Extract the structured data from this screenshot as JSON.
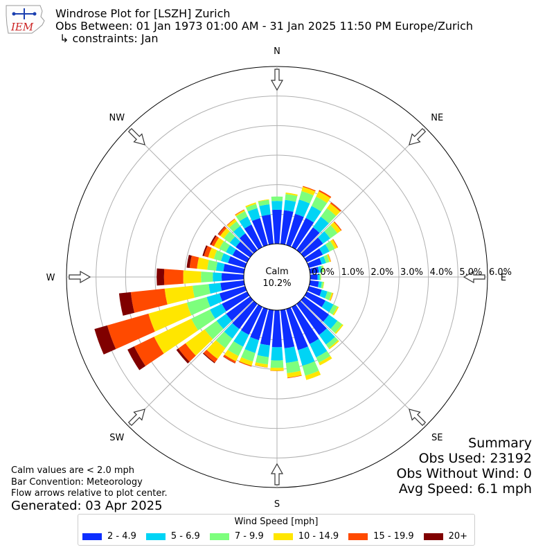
{
  "header": {
    "logo_text": "IEM",
    "title": "Windrose Plot for [LSZH] Zurich",
    "subtitle": "Obs Between: 01 Jan 1973 01:00 AM - 31 Jan 2025 11:50 PM Europe/Zurich",
    "constraints": "↳ constraints: Jan"
  },
  "notes": {
    "calm_def": "Calm values are < 2.0 mph",
    "convention": "Bar Convention: Meteorology",
    "flow": "Flow arrows relative to plot center.",
    "generated": "Generated: 03 Apr 2025"
  },
  "summary": {
    "title": "Summary",
    "obs_used": "Obs Used: 23192",
    "obs_without_wind": "Obs Without Wind: 0",
    "avg_speed": "Avg Speed: 6.1 mph"
  },
  "chart_data": {
    "type": "windrose",
    "calm_label": "Calm",
    "calm_value": "10.2%",
    "directions": [
      "N",
      "NE",
      "E",
      "SE",
      "S",
      "SW",
      "W",
      "NW"
    ],
    "radial_labels": [
      "0.0%",
      "1.0%",
      "2.0%",
      "3.0%",
      "4.0%",
      "5.0%",
      "6.0%"
    ],
    "radial_max": 6.0,
    "sector_degrees": [
      0,
      10,
      20,
      30,
      40,
      50,
      60,
      70,
      80,
      90,
      100,
      110,
      120,
      130,
      140,
      150,
      160,
      170,
      180,
      190,
      200,
      210,
      220,
      230,
      240,
      250,
      260,
      270,
      280,
      290,
      300,
      310,
      320,
      330,
      340,
      350
    ],
    "legend_title": "Wind Speed [mph]",
    "bins": [
      {
        "label": "2 - 4.9",
        "color": "#0d2eff"
      },
      {
        "label": "5 - 6.9",
        "color": "#00d4f5"
      },
      {
        "label": "7 - 9.9",
        "color": "#7dff7d"
      },
      {
        "label": "10 - 14.9",
        "color": "#ffe600"
      },
      {
        "label": "15 - 19.9",
        "color": "#ff4a00"
      },
      {
        "label": "20+",
        "color": "#800000"
      }
    ],
    "cumulative": [
      [
        1.15,
        1.45,
        1.6,
        1.6,
        1.6,
        1.6
      ],
      [
        1.15,
        1.5,
        1.7,
        1.75,
        1.75,
        1.75
      ],
      [
        1.1,
        1.6,
        1.9,
        2.05,
        2.08,
        2.08
      ],
      [
        1.1,
        1.55,
        1.9,
        2.1,
        2.15,
        2.15
      ],
      [
        0.95,
        1.4,
        1.75,
        1.95,
        2.0,
        2.0
      ],
      [
        0.8,
        1.1,
        1.4,
        1.55,
        1.58,
        1.58
      ],
      [
        0.6,
        0.85,
        1.05,
        1.15,
        1.17,
        1.17
      ],
      [
        0.45,
        0.6,
        0.72,
        0.77,
        0.78,
        0.78
      ],
      [
        0.3,
        0.4,
        0.46,
        0.48,
        0.48,
        0.48
      ],
      [
        0.25,
        0.32,
        0.36,
        0.37,
        0.37,
        0.37
      ],
      [
        0.3,
        0.4,
        0.46,
        0.48,
        0.48,
        0.48
      ],
      [
        0.45,
        0.65,
        0.8,
        0.85,
        0.86,
        0.86
      ],
      [
        0.7,
        1.0,
        1.15,
        1.2,
        1.2,
        1.2
      ],
      [
        1.05,
        1.4,
        1.6,
        1.65,
        1.65,
        1.65
      ],
      [
        1.3,
        1.7,
        1.85,
        1.9,
        1.9,
        1.9
      ],
      [
        1.4,
        1.9,
        2.1,
        2.2,
        2.2,
        2.2
      ],
      [
        1.45,
        2.0,
        2.35,
        2.5,
        2.5,
        2.5
      ],
      [
        1.3,
        1.8,
        2.15,
        2.3,
        2.32,
        2.32
      ],
      [
        1.25,
        1.7,
        1.95,
        2.05,
        2.06,
        2.06
      ],
      [
        1.2,
        1.6,
        1.85,
        1.95,
        1.96,
        1.96
      ],
      [
        1.1,
        1.55,
        1.85,
        2.0,
        2.03,
        2.03
      ],
      [
        1.05,
        1.5,
        1.85,
        2.05,
        2.12,
        2.13
      ],
      [
        1.05,
        1.45,
        1.85,
        2.3,
        2.45,
        2.48
      ],
      [
        1.0,
        1.4,
        1.9,
        2.7,
        3.0,
        3.08
      ],
      [
        0.95,
        1.4,
        2.1,
        3.5,
        4.25,
        4.5
      ],
      [
        0.9,
        1.35,
        2.05,
        3.4,
        4.85,
        5.3
      ],
      [
        0.8,
        1.2,
        1.75,
        2.7,
        3.85,
        4.25
      ],
      [
        0.75,
        1.05,
        1.45,
        2.05,
        2.7,
        2.95
      ],
      [
        0.7,
        0.95,
        1.25,
        1.6,
        1.85,
        1.95
      ],
      [
        0.6,
        0.85,
        1.1,
        1.3,
        1.45,
        1.5
      ],
      [
        0.55,
        0.8,
        1.05,
        1.25,
        1.35,
        1.4
      ],
      [
        0.6,
        0.85,
        1.1,
        1.25,
        1.33,
        1.35
      ],
      [
        0.7,
        1.0,
        1.2,
        1.3,
        1.32,
        1.32
      ],
      [
        0.85,
        1.15,
        1.35,
        1.4,
        1.42,
        1.42
      ],
      [
        0.95,
        1.3,
        1.45,
        1.5,
        1.5,
        1.5
      ],
      [
        1.0,
        1.35,
        1.5,
        1.52,
        1.52,
        1.52
      ]
    ]
  }
}
